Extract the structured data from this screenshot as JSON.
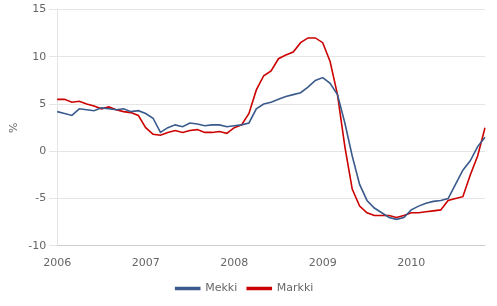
{
  "chart_data": {
    "type": "line",
    "ylabel": "%",
    "categories": [
      "2006",
      null,
      null,
      null,
      null,
      null,
      null,
      null,
      null,
      null,
      null,
      null,
      "2007",
      null,
      null,
      null,
      null,
      null,
      null,
      null,
      null,
      null,
      null,
      null,
      "2008",
      null,
      null,
      null,
      null,
      null,
      null,
      null,
      null,
      null,
      null,
      null,
      "2009",
      null,
      null,
      null,
      null,
      null,
      null,
      null,
      null,
      null,
      null,
      null,
      "2010",
      null,
      null,
      null,
      null,
      null,
      null,
      null,
      null,
      null,
      null
    ],
    "series": [
      {
        "name": "Mekki",
        "color": "#3a5a8c",
        "values": [
          4.2,
          4.0,
          3.8,
          4.5,
          4.4,
          4.3,
          4.6,
          4.5,
          4.4,
          4.5,
          4.2,
          4.3,
          4.0,
          3.5,
          2.0,
          2.5,
          2.8,
          2.6,
          3.0,
          2.9,
          2.7,
          2.8,
          2.8,
          2.6,
          2.7,
          2.8,
          3.0,
          4.5,
          5.0,
          5.2,
          5.5,
          5.8,
          6.0,
          6.2,
          6.8,
          7.5,
          7.8,
          7.2,
          6.0,
          3.0,
          -0.5,
          -3.5,
          -5.2,
          -6.0,
          -6.5,
          -7.0,
          -7.2,
          -7.0,
          -6.2,
          -5.8,
          -5.5,
          -5.3,
          -5.2,
          -5.0,
          -3.5,
          -2.0,
          -1.0,
          0.5,
          1.5
        ]
      },
      {
        "name": "Markki",
        "color": "#cc0000",
        "values": [
          5.5,
          5.5,
          5.2,
          5.3,
          5.0,
          4.8,
          4.5,
          4.7,
          4.4,
          4.2,
          4.1,
          3.8,
          2.5,
          1.8,
          1.7,
          2.0,
          2.2,
          2.0,
          2.2,
          2.3,
          2.0,
          2.0,
          2.1,
          1.9,
          2.5,
          2.8,
          4.0,
          6.5,
          8.0,
          8.5,
          9.8,
          10.2,
          10.5,
          11.5,
          12.0,
          12.0,
          11.5,
          9.5,
          6.0,
          0.5,
          -4.0,
          -5.8,
          -6.5,
          -6.8,
          -6.8,
          -6.8,
          -7.0,
          -6.8,
          -6.5,
          -6.5,
          -6.4,
          -6.3,
          -6.2,
          -5.2,
          -5.0,
          -4.8,
          -2.5,
          -0.5,
          2.5
        ]
      }
    ],
    "ylim": [
      -10,
      15
    ],
    "yticks": [
      -10,
      -5,
      0,
      5,
      10,
      15
    ],
    "grid": "y",
    "legend": "bottom"
  }
}
